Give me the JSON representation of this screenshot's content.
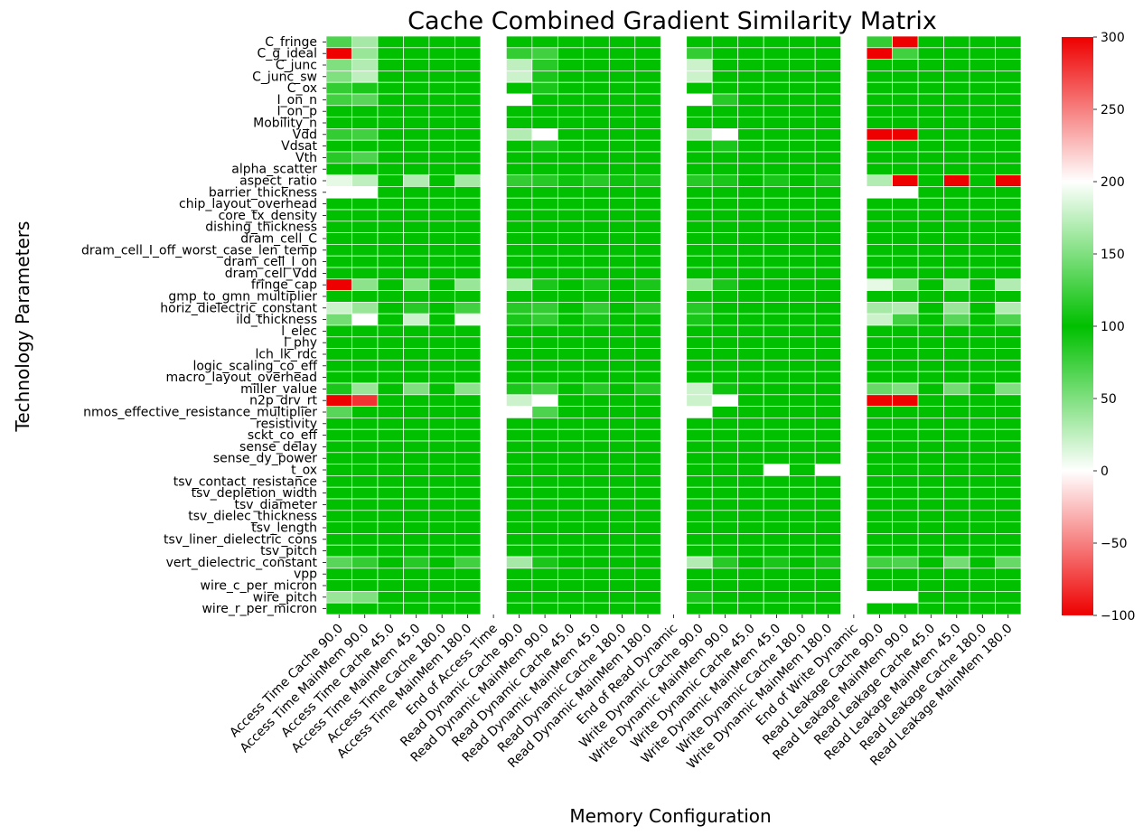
{
  "chart_data": {
    "type": "heatmap",
    "title": "Cache Combined Gradient Similarity Matrix",
    "xlabel": "Memory Configuration",
    "ylabel": "Technology Parameters",
    "columns": [
      "Access Time Cache 90.0",
      "Access Time MainMem 90.0",
      "Access Time Cache 45.0",
      "Access Time MainMem 45.0",
      "Access Time Cache 180.0",
      "Access Time MainMem 180.0",
      "End of Access Time",
      "Read Dynamic Cache 90.0",
      "Read Dynamic MainMem 90.0",
      "Read Dynamic Cache 45.0",
      "Read Dynamic MainMem 45.0",
      "Read Dynamic Cache 180.0",
      "Read Dynamic MainMem 180.0",
      "End of Read Dynamic",
      "Write Dynamic Cache 90.0",
      "Write Dynamic MainMem 90.0",
      "Write Dynamic Cache 45.0",
      "Write Dynamic MainMem 45.0",
      "Write Dynamic Cache 180.0",
      "Write Dynamic MainMem 180.0",
      "End of Write Dynamic",
      "Read Leakage Cache 90.0",
      "Read Leakage MainMem 90.0",
      "Read Leakage Cache 45.0",
      "Read Leakage MainMem 45.0",
      "Read Leakage Cache 180.0",
      "Read Leakage MainMem 180.0"
    ],
    "rows": [
      "C_fringe",
      "C_g_ideal",
      "C_junc",
      "C_junc_sw",
      "C_ox",
      "I_on_n",
      "I_on_p",
      "Mobility_n",
      "Vdd",
      "Vdsat",
      "Vth",
      "alpha_scatter",
      "aspect_ratio",
      "barrier_thickness",
      "chip_layout_overhead",
      "core_tx_density",
      "dishing_thickness",
      "dram_cell_C",
      "dram_cell_I_off_worst_case_len_temp",
      "dram_cell_I_on",
      "dram_cell_Vdd",
      "fringe_cap",
      "gmp_to_gmn_multiplier",
      "horiz_dielectric_constant",
      "ild_thickness",
      "l_elec",
      "l_phy",
      "lch_lk_rdc",
      "logic_scaling_co_eff",
      "macro_layout_overhead",
      "miller_value",
      "n2p_drv_rt",
      "nmos_effective_resistance_multiplier",
      "resistivity",
      "sckt_co_eff",
      "sense_delay",
      "sense_dy_power",
      "t_ox",
      "tsv_contact_resistance",
      "tsv_depletion_width",
      "tsv_diameter",
      "tsv_dielec_thickness",
      "tsv_length",
      "tsv_liner_dielectric_cons",
      "tsv_pitch",
      "vert_dielectric_constant",
      "vpp",
      "wire_c_per_micron",
      "wire_pitch",
      "wire_r_per_micron"
    ],
    "default_value": 100,
    "empty_columns": [
      6,
      13,
      20
    ],
    "cells": [
      [
        0,
        0,
        130
      ],
      [
        0,
        1,
        165
      ],
      [
        0,
        21,
        120
      ],
      [
        0,
        22,
        -100
      ],
      [
        1,
        0,
        -100
      ],
      [
        1,
        1,
        160
      ],
      [
        1,
        7,
        120
      ],
      [
        1,
        8,
        125
      ],
      [
        1,
        14,
        120
      ],
      [
        1,
        21,
        -100
      ],
      [
        1,
        22,
        125
      ],
      [
        2,
        0,
        150
      ],
      [
        2,
        1,
        170
      ],
      [
        2,
        7,
        175
      ],
      [
        2,
        8,
        115
      ],
      [
        2,
        14,
        180
      ],
      [
        3,
        0,
        150
      ],
      [
        3,
        1,
        175
      ],
      [
        3,
        7,
        180
      ],
      [
        3,
        8,
        110
      ],
      [
        3,
        14,
        180
      ],
      [
        4,
        0,
        120
      ],
      [
        4,
        1,
        110
      ],
      [
        4,
        8,
        110
      ],
      [
        5,
        0,
        125
      ],
      [
        5,
        1,
        135
      ],
      [
        5,
        7,
        200
      ],
      [
        5,
        14,
        200
      ],
      [
        5,
        15,
        115
      ],
      [
        8,
        0,
        120
      ],
      [
        8,
        1,
        125
      ],
      [
        8,
        7,
        170
      ],
      [
        8,
        8,
        200
      ],
      [
        8,
        14,
        170
      ],
      [
        8,
        15,
        200
      ],
      [
        8,
        21,
        -100
      ],
      [
        8,
        22,
        -100
      ],
      [
        9,
        8,
        110
      ],
      [
        9,
        15,
        110
      ],
      [
        10,
        0,
        115
      ],
      [
        10,
        1,
        130
      ],
      [
        12,
        0,
        190
      ],
      [
        12,
        1,
        175
      ],
      [
        12,
        3,
        170
      ],
      [
        12,
        5,
        165
      ],
      [
        12,
        7,
        120
      ],
      [
        12,
        8,
        115
      ],
      [
        12,
        9,
        105
      ],
      [
        12,
        10,
        115
      ],
      [
        12,
        11,
        105
      ],
      [
        12,
        12,
        110
      ],
      [
        12,
        14,
        115
      ],
      [
        12,
        15,
        110
      ],
      [
        12,
        17,
        110
      ],
      [
        12,
        19,
        110
      ],
      [
        12,
        21,
        170
      ],
      [
        12,
        22,
        -100
      ],
      [
        12,
        24,
        -100
      ],
      [
        12,
        26,
        -100
      ],
      [
        13,
        0,
        200
      ],
      [
        13,
        1,
        200
      ],
      [
        13,
        21,
        200
      ],
      [
        13,
        22,
        200
      ],
      [
        21,
        0,
        -100
      ],
      [
        21,
        1,
        155
      ],
      [
        21,
        3,
        155
      ],
      [
        21,
        5,
        160
      ],
      [
        21,
        7,
        170
      ],
      [
        21,
        8,
        110
      ],
      [
        21,
        10,
        110
      ],
      [
        21,
        12,
        110
      ],
      [
        21,
        14,
        160
      ],
      [
        21,
        15,
        110
      ],
      [
        21,
        21,
        10
      ],
      [
        21,
        22,
        160
      ],
      [
        21,
        24,
        165
      ],
      [
        21,
        26,
        170
      ],
      [
        23,
        0,
        180
      ],
      [
        23,
        1,
        160
      ],
      [
        23,
        3,
        115
      ],
      [
        23,
        5,
        125
      ],
      [
        23,
        7,
        115
      ],
      [
        23,
        8,
        120
      ],
      [
        23,
        10,
        120
      ],
      [
        23,
        12,
        115
      ],
      [
        23,
        14,
        115
      ],
      [
        23,
        21,
        165
      ],
      [
        23,
        22,
        170
      ],
      [
        23,
        24,
        160
      ],
      [
        23,
        26,
        170
      ],
      [
        24,
        0,
        145
      ],
      [
        24,
        1,
        200
      ],
      [
        24,
        3,
        180
      ],
      [
        24,
        5,
        195
      ],
      [
        24,
        7,
        110
      ],
      [
        24,
        8,
        120
      ],
      [
        24,
        10,
        110
      ],
      [
        24,
        14,
        110
      ],
      [
        24,
        21,
        180
      ],
      [
        24,
        22,
        125
      ],
      [
        24,
        24,
        135
      ],
      [
        24,
        26,
        130
      ],
      [
        30,
        0,
        110
      ],
      [
        30,
        1,
        160
      ],
      [
        30,
        3,
        150
      ],
      [
        30,
        5,
        155
      ],
      [
        30,
        7,
        110
      ],
      [
        30,
        8,
        125
      ],
      [
        30,
        10,
        115
      ],
      [
        30,
        12,
        115
      ],
      [
        30,
        14,
        180
      ],
      [
        30,
        15,
        105
      ],
      [
        30,
        21,
        140
      ],
      [
        30,
        22,
        150
      ],
      [
        30,
        24,
        145
      ],
      [
        30,
        26,
        150
      ],
      [
        31,
        0,
        -100
      ],
      [
        31,
        1,
        -80
      ],
      [
        31,
        7,
        180
      ],
      [
        31,
        8,
        200
      ],
      [
        31,
        14,
        180
      ],
      [
        31,
        15,
        200
      ],
      [
        31,
        21,
        -100
      ],
      [
        31,
        22,
        -100
      ],
      [
        32,
        0,
        135
      ],
      [
        32,
        7,
        200
      ],
      [
        32,
        8,
        130
      ],
      [
        32,
        14,
        200
      ],
      [
        37,
        17,
        200
      ],
      [
        37,
        19,
        200
      ],
      [
        45,
        0,
        135
      ],
      [
        45,
        1,
        120
      ],
      [
        45,
        3,
        115
      ],
      [
        45,
        5,
        125
      ],
      [
        45,
        7,
        165
      ],
      [
        45,
        8,
        110
      ],
      [
        45,
        14,
        170
      ],
      [
        45,
        15,
        115
      ],
      [
        45,
        17,
        110
      ],
      [
        45,
        19,
        110
      ],
      [
        45,
        21,
        125
      ],
      [
        45,
        22,
        130
      ],
      [
        45,
        24,
        145
      ],
      [
        45,
        26,
        140
      ],
      [
        48,
        0,
        160
      ],
      [
        48,
        1,
        150
      ],
      [
        48,
        14,
        110
      ],
      [
        48,
        21,
        200
      ],
      [
        48,
        22,
        200
      ]
    ],
    "colorbar": {
      "min": -100,
      "max": 300,
      "ticks": [
        300,
        250,
        200,
        150,
        100,
        50,
        0,
        -50,
        -100
      ],
      "colors": [
        "#ee0000",
        "#ffffff",
        "#00c000",
        "#ffffff",
        "#ee0000"
      ]
    },
    "grid": false
  }
}
